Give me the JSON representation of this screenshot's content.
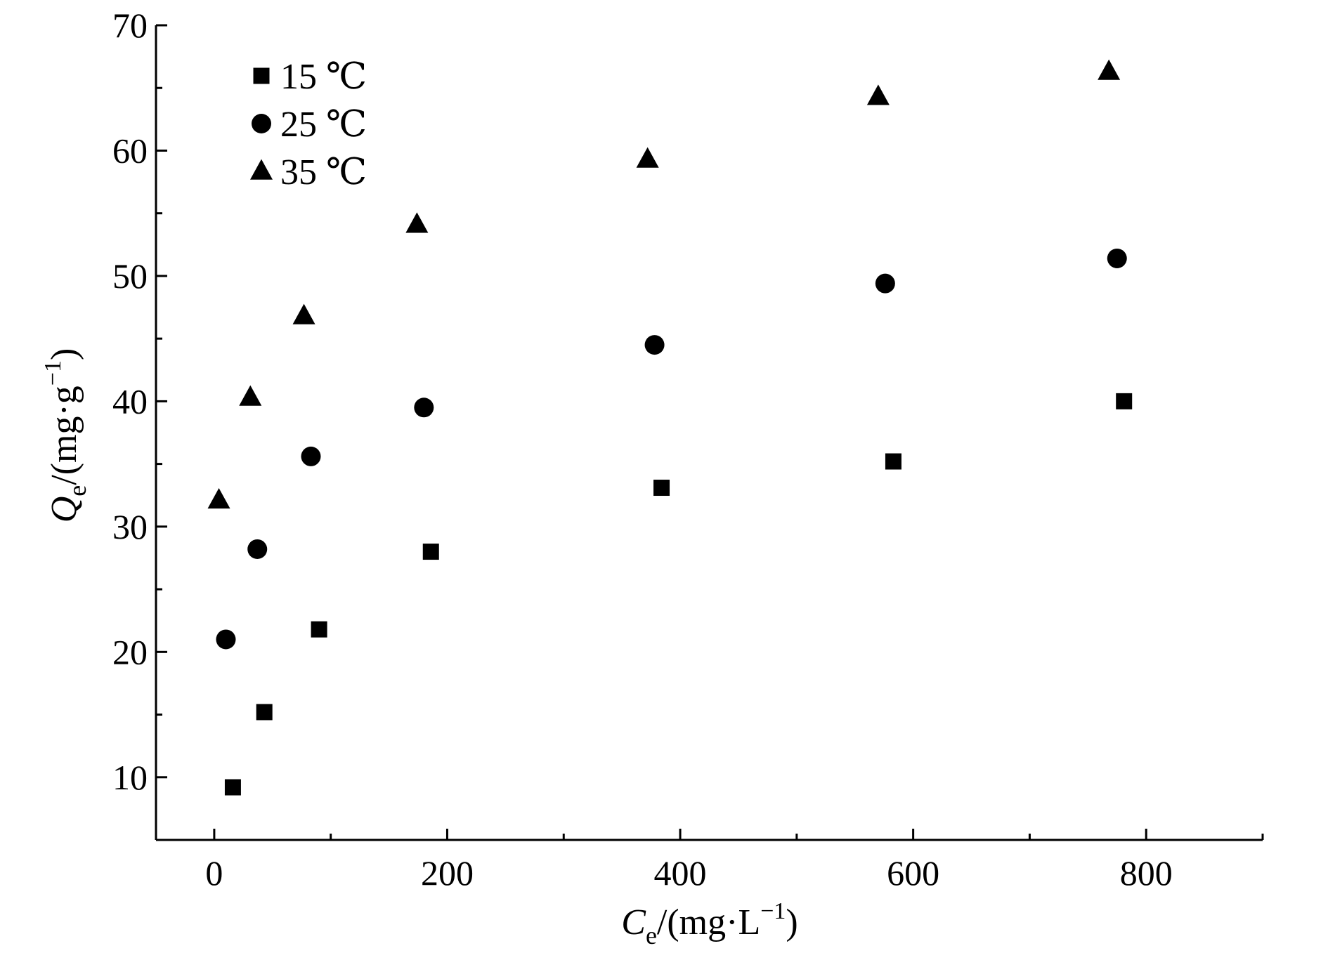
{
  "chart_data": {
    "type": "scatter",
    "xlim": [
      -50,
      900
    ],
    "ylim": [
      5,
      70
    ],
    "x_ticks": [
      0,
      200,
      400,
      600,
      800
    ],
    "x_minor_ticks": [
      100,
      300,
      500,
      700,
      900
    ],
    "y_ticks": [
      10,
      20,
      30,
      40,
      50,
      60,
      70
    ],
    "y_minor_ticks": [
      15,
      25,
      35,
      45,
      55,
      65
    ],
    "x_tick_labels": [
      "0",
      "200",
      "400",
      "600",
      "800"
    ],
    "y_tick_labels": [
      "10",
      "20",
      "30",
      "40",
      "50",
      "60",
      "70"
    ],
    "xlabel": {
      "symbol": "C",
      "subscript": "e",
      "unit_open": "/(mg·L",
      "superscript": "−1",
      "unit_close": ")"
    },
    "ylabel": {
      "symbol": "Q",
      "subscript": "e",
      "unit_open": "/(mg·g",
      "superscript": "−1",
      "unit_close": ")"
    },
    "legend_position": "top-left",
    "grid": false,
    "series": [
      {
        "name": "15 ℃",
        "marker": "square",
        "color": "#000000",
        "x": [
          16,
          43,
          90,
          186,
          384,
          583,
          781
        ],
        "y": [
          9.2,
          15.2,
          21.8,
          28.0,
          33.1,
          35.2,
          40.0
        ]
      },
      {
        "name": "25 ℃",
        "marker": "circle",
        "color": "#000000",
        "x": [
          10,
          37,
          83,
          180,
          378,
          576,
          775
        ],
        "y": [
          21.0,
          28.2,
          35.6,
          39.5,
          44.5,
          49.4,
          51.4
        ]
      },
      {
        "name": "35 ℃",
        "marker": "triangle",
        "color": "#000000",
        "x": [
          4,
          31,
          77,
          174,
          372,
          570,
          768
        ],
        "y": [
          32.1,
          40.3,
          46.8,
          54.1,
          59.3,
          64.3,
          66.3
        ]
      }
    ]
  }
}
